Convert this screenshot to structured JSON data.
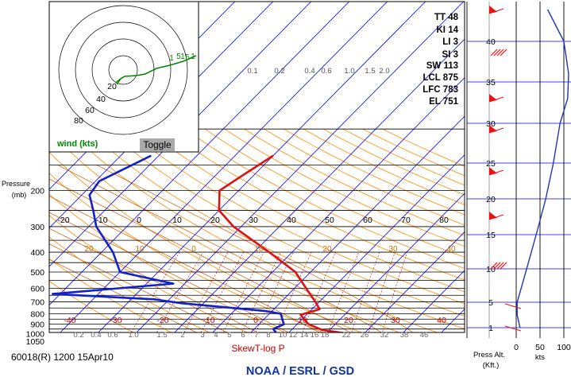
{
  "station_label": "60018(R) 1200 15Apr10",
  "chart_title": "SkewT-log P",
  "agency": "NOAA / ESRL / GSD",
  "pressure_axis_label": [
    "Pressure",
    "(mb)"
  ],
  "toggle_label": "Toggle",
  "hodograph_label": "wind (kts)",
  "indices": [
    {
      "label": "TT 48"
    },
    {
      "label": "KI 14"
    },
    {
      "label": "LI 3"
    },
    {
      "label": "SI 3"
    },
    {
      "label": "SW 113"
    },
    {
      "label": "LCL 875"
    },
    {
      "label": "LFC 783"
    },
    {
      "label": "EL 751"
    }
  ],
  "right_panel": {
    "press_alt_label": [
      "Press Alt.",
      "(Kft.)"
    ],
    "kts_label": "kts",
    "speed_ticks": [
      "0",
      "50",
      "100"
    ]
  },
  "colors": {
    "temperature": "#dd1111",
    "dewpoint": "#1122cc",
    "isobar": "#000000",
    "isotherm": "#0000ff",
    "dry_adiabat": "#ff8c00",
    "mixing_ratio": "#cc0000",
    "saturation_adiabat": "#d25a00",
    "hodograph": "#008800",
    "wind_barb": "#ee1111",
    "height_line": "#2233bb"
  },
  "chart_data": {
    "type": "skewt",
    "title": "SkewT-log P",
    "ylabel": "Pressure (mb)",
    "pressure_labels": [
      "200",
      "300",
      "400",
      "500",
      "600",
      "700",
      "800",
      "900",
      "1000",
      "1050"
    ],
    "pressure_values": [
      200,
      300,
      400,
      500,
      600,
      700,
      800,
      900,
      1000,
      1050
    ],
    "temp_ticks_upper": [
      "-20",
      "-10",
      "0",
      "10",
      "20",
      "30",
      "40",
      "50",
      "60",
      "70",
      "80"
    ],
    "temp_ticks_lower": [
      "-40",
      "-30",
      "-20",
      "-10",
      "0",
      "10",
      "20",
      "30",
      "40"
    ],
    "mixing_ratio_upper": [
      "0.1",
      "0.2",
      "0.4",
      "0.6",
      "1.0",
      "1.5",
      "2.0"
    ],
    "mixing_ratio_lower": [
      "0.2",
      "0.4",
      "0.6",
      "1.0",
      "1.5",
      "2",
      "3",
      "4",
      "5",
      "6",
      "7",
      "8",
      "10",
      "12",
      "14",
      "16",
      "18",
      "22",
      "26",
      "32",
      "38",
      "46"
    ],
    "dry_adiabat_labels": [
      "20",
      "10",
      "0",
      "10",
      "20",
      "30",
      "40"
    ],
    "series": [
      {
        "name": "Temperature",
        "values": [
          {
            "p": 1000,
            "t": 15.5
          },
          {
            "p": 960,
            "t": 8
          },
          {
            "p": 900,
            "t": 3
          },
          {
            "p": 850,
            "t": 0.5
          },
          {
            "p": 810,
            "t": -1.5
          },
          {
            "p": 760,
            "t": 2
          },
          {
            "p": 700,
            "t": -1
          },
          {
            "p": 600,
            "t": -7
          },
          {
            "p": 500,
            "t": -14
          },
          {
            "p": 400,
            "t": -26
          },
          {
            "p": 300,
            "t": -42
          },
          {
            "p": 250,
            "t": -50
          },
          {
            "p": 200,
            "t": -55
          },
          {
            "p": 170,
            "t": -53
          },
          {
            "p": 135,
            "t": -50
          }
        ]
      },
      {
        "name": "Dew point",
        "values": [
          {
            "p": 1000,
            "t": -3
          },
          {
            "p": 950,
            "t": -5
          },
          {
            "p": 900,
            "t": -3.5
          },
          {
            "p": 800,
            "t": -7
          },
          {
            "p": 775,
            "t": -12
          },
          {
            "p": 710,
            "t": -36
          },
          {
            "p": 680,
            "t": -44
          },
          {
            "p": 640,
            "t": -72
          },
          {
            "p": 570,
            "t": -43
          },
          {
            "p": 500,
            "t": -60
          },
          {
            "p": 400,
            "t": -67
          },
          {
            "p": 300,
            "t": -78
          },
          {
            "p": 250,
            "t": -83
          },
          {
            "p": 210,
            "t": -88
          },
          {
            "p": 180,
            "t": -89
          },
          {
            "p": 135,
            "t": -82
          }
        ]
      }
    ],
    "hodograph": {
      "rings": [
        "20",
        "40",
        "60",
        "80"
      ],
      "labels": [
        "1",
        "5",
        "1",
        "5",
        "1"
      ]
    },
    "height_axis": {
      "labels": [
        "1",
        "5",
        "10",
        "15",
        "20",
        "25",
        "30",
        "35",
        "40"
      ],
      "values": [
        1,
        5,
        10,
        15,
        20,
        25,
        30,
        35,
        40
      ]
    },
    "wind_speed_profile": {
      "xlim": [
        0,
        100
      ],
      "points": [
        {
          "alt": 1,
          "kts": 8
        },
        {
          "alt": 3,
          "kts": 2
        },
        {
          "alt": 5,
          "kts": 2
        },
        {
          "alt": 8,
          "kts": 14
        },
        {
          "alt": 12,
          "kts": 30
        },
        {
          "alt": 16,
          "kts": 46
        },
        {
          "alt": 20,
          "kts": 62
        },
        {
          "alt": 25,
          "kts": 78
        },
        {
          "alt": 30,
          "kts": 92
        },
        {
          "alt": 33,
          "kts": 108
        },
        {
          "alt": 36,
          "kts": 110
        },
        {
          "alt": 40,
          "kts": 100
        },
        {
          "alt": 44,
          "kts": 66
        }
      ]
    }
  }
}
